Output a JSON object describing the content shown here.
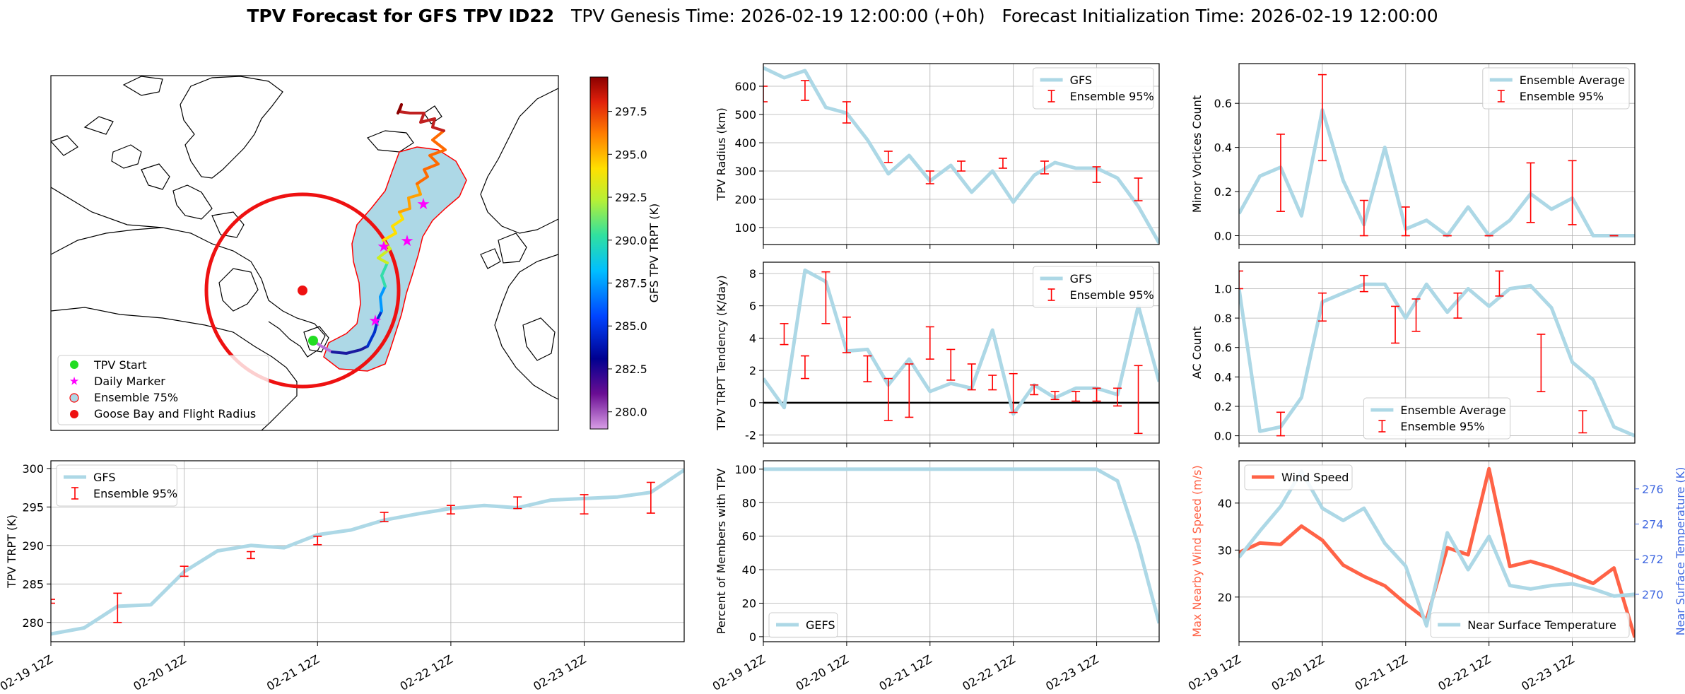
{
  "title": {
    "bold": "TPV Forecast for GFS TPV ID22",
    "genesis": "TPV Genesis Time: 2026-02-19 12:00:00 (+0h)",
    "init": "Forecast Initialization Time: 2026-02-19 12:00:00"
  },
  "colors": {
    "gfs": "#add8e6",
    "ensemble": "#ff0000",
    "wind": "#ff6347",
    "temp": "#4169e1",
    "goose_circle": "#ee1111",
    "contour_fill": "#add8e6"
  },
  "date_ticks": [
    "02-19 12Z",
    "02-20 12Z",
    "02-21 12Z",
    "02-22 12Z",
    "02-23 12Z"
  ],
  "map_panel": {
    "colorbar_label": "GFS TPV TRPT (K)",
    "colorbar_ticks": [
      "280.0",
      "282.5",
      "285.0",
      "287.5",
      "290.0",
      "292.5",
      "295.0",
      "297.5"
    ],
    "legend": [
      "TPV Start",
      "Daily Marker",
      "Ensemble 75%",
      "Goose Bay and Flight Radius"
    ]
  },
  "chart_data": [
    {
      "id": "radius",
      "type": "line",
      "ylabel": "TPV Radius (km)",
      "xlim": [
        0,
        19
      ],
      "ylim": [
        40,
        680
      ],
      "yticks": [
        100,
        200,
        300,
        400,
        500,
        600
      ],
      "legend_loc": "upper right",
      "legend": [
        "GFS",
        "Ensemble 95%"
      ],
      "x": [
        0,
        1,
        2,
        3,
        4,
        5,
        6,
        7,
        8,
        9,
        10,
        11,
        12,
        13,
        14,
        15,
        16,
        17,
        18,
        19
      ],
      "series": [
        {
          "name": "GFS",
          "values": [
            665,
            630,
            655,
            525,
            505,
            410,
            290,
            355,
            265,
            320,
            225,
            300,
            190,
            285,
            330,
            310,
            310,
            275,
            175,
            45
          ]
        }
      ],
      "errorbars": [
        {
          "x": 0,
          "lo": 545,
          "hi": 600
        },
        {
          "x": 2,
          "lo": 550,
          "hi": 620
        },
        {
          "x": 4,
          "lo": 470,
          "hi": 545
        },
        {
          "x": 6,
          "lo": 330,
          "hi": 370
        },
        {
          "x": 8,
          "lo": 255,
          "hi": 300
        },
        {
          "x": 9.5,
          "lo": 300,
          "hi": 335
        },
        {
          "x": 11.5,
          "lo": 310,
          "hi": 345
        },
        {
          "x": 13.5,
          "lo": 290,
          "hi": 335
        },
        {
          "x": 16,
          "lo": 260,
          "hi": 315
        },
        {
          "x": 18,
          "lo": 195,
          "hi": 275
        }
      ]
    },
    {
      "id": "minor",
      "type": "line",
      "ylabel": "Minor Vortices Count",
      "xlim": [
        0,
        19
      ],
      "ylim": [
        -0.04,
        0.78
      ],
      "yticks": [
        0.0,
        0.2,
        0.4,
        0.6
      ],
      "legend_loc": "upper right",
      "legend": [
        "Ensemble Average",
        "Ensemble 95%"
      ],
      "x": [
        0,
        1,
        2,
        3,
        4,
        5,
        6,
        7,
        8,
        9,
        10,
        11,
        12,
        13,
        14,
        15,
        16,
        17,
        18,
        19
      ],
      "series": [
        {
          "name": "Ensemble Average",
          "values": [
            0.1,
            0.27,
            0.31,
            0.09,
            0.57,
            0.25,
            0.05,
            0.4,
            0.03,
            0.07,
            0.0,
            0.13,
            0.0,
            0.07,
            0.19,
            0.12,
            0.17,
            0.0,
            0.0,
            0.0
          ]
        }
      ],
      "errorbars": [
        {
          "x": 2,
          "lo": 0.11,
          "hi": 0.46
        },
        {
          "x": 4,
          "lo": 0.34,
          "hi": 0.73
        },
        {
          "x": 6,
          "lo": 0.0,
          "hi": 0.16
        },
        {
          "x": 8,
          "lo": 0.0,
          "hi": 0.13
        },
        {
          "x": 10,
          "lo": 0.0,
          "hi": 0.0
        },
        {
          "x": 12,
          "lo": 0.0,
          "hi": 0.0
        },
        {
          "x": 14,
          "lo": 0.06,
          "hi": 0.33
        },
        {
          "x": 16,
          "lo": 0.05,
          "hi": 0.34
        },
        {
          "x": 18,
          "lo": 0.0,
          "hi": 0.0
        }
      ]
    },
    {
      "id": "tendency",
      "type": "line",
      "ylabel": "TPV TRPT Tendency (K/day)",
      "xlim": [
        0,
        19
      ],
      "ylim": [
        -2.5,
        8.7
      ],
      "yticks": [
        -2,
        0,
        2,
        4,
        6,
        8
      ],
      "zero_line": true,
      "legend_loc": "upper right",
      "legend": [
        "GFS",
        "Ensemble 95%"
      ],
      "x": [
        0,
        1,
        2,
        3,
        4,
        5,
        6,
        7,
        8,
        9,
        10,
        11,
        12,
        13,
        14,
        15,
        16,
        17,
        18,
        19
      ],
      "series": [
        {
          "name": "GFS",
          "values": [
            1.5,
            -0.3,
            8.2,
            7.5,
            3.2,
            3.3,
            1.1,
            2.7,
            0.7,
            1.2,
            0.9,
            4.5,
            -0.7,
            1.1,
            0.3,
            0.9,
            0.9,
            0.5,
            6.0,
            1.3
          ]
        }
      ],
      "errorbars": [
        {
          "x": 1,
          "lo": 3.6,
          "hi": 4.9
        },
        {
          "x": 2,
          "lo": 1.5,
          "hi": 2.9
        },
        {
          "x": 3,
          "lo": 4.9,
          "hi": 8.1
        },
        {
          "x": 4,
          "lo": 3.1,
          "hi": 5.3
        },
        {
          "x": 5,
          "lo": 1.3,
          "hi": 2.9
        },
        {
          "x": 6,
          "lo": -1.1,
          "hi": 1.5
        },
        {
          "x": 7,
          "lo": -0.9,
          "hi": 2.4
        },
        {
          "x": 8,
          "lo": 2.7,
          "hi": 4.7
        },
        {
          "x": 9,
          "lo": 1.4,
          "hi": 3.3
        },
        {
          "x": 10,
          "lo": 0.8,
          "hi": 2.4
        },
        {
          "x": 11,
          "lo": 0.8,
          "hi": 1.7
        },
        {
          "x": 12,
          "lo": -0.6,
          "hi": 1.8
        },
        {
          "x": 13,
          "lo": 0.5,
          "hi": 1.1
        },
        {
          "x": 14,
          "lo": 0.2,
          "hi": 0.7
        },
        {
          "x": 15,
          "lo": 0.1,
          "hi": 0.7
        },
        {
          "x": 16,
          "lo": 0.1,
          "hi": 0.9
        },
        {
          "x": 17,
          "lo": -0.2,
          "hi": 0.9
        },
        {
          "x": 18,
          "lo": -1.9,
          "hi": 2.3
        }
      ]
    },
    {
      "id": "ac",
      "type": "line",
      "ylabel": "AC Count",
      "xlim": [
        0,
        19
      ],
      "ylim": [
        -0.05,
        1.18
      ],
      "yticks": [
        0.0,
        0.2,
        0.4,
        0.6,
        0.8,
        1.0
      ],
      "legend_loc": "lower center",
      "legend": [
        "Ensemble Average",
        "Ensemble 95%"
      ],
      "x": [
        0,
        1,
        2,
        3,
        4,
        5,
        6,
        7,
        8,
        9,
        10,
        11,
        12,
        13,
        14,
        15,
        16,
        17,
        18,
        19
      ],
      "series": [
        {
          "name": "Ensemble Average",
          "values": [
            1.0,
            0.03,
            0.06,
            0.26,
            0.91,
            0.97,
            1.03,
            1.03,
            0.8,
            1.03,
            0.84,
            1.0,
            0.88,
            1.0,
            1.02,
            0.87,
            0.5,
            0.38,
            0.06,
            0.0
          ]
        }
      ],
      "errorbars": [
        {
          "x": 0,
          "lo": 1.0,
          "hi": 1.12
        },
        {
          "x": 2,
          "lo": 0.0,
          "hi": 0.16
        },
        {
          "x": 4,
          "lo": 0.78,
          "hi": 0.97
        },
        {
          "x": 6,
          "lo": 0.98,
          "hi": 1.09
        },
        {
          "x": 7.5,
          "lo": 0.63,
          "hi": 0.88
        },
        {
          "x": 8.5,
          "lo": 0.71,
          "hi": 0.93
        },
        {
          "x": 10.5,
          "lo": 0.8,
          "hi": 0.97
        },
        {
          "x": 12.5,
          "lo": 0.95,
          "hi": 1.12
        },
        {
          "x": 14.5,
          "lo": 0.3,
          "hi": 0.69
        },
        {
          "x": 16.5,
          "lo": 0.02,
          "hi": 0.17
        }
      ]
    },
    {
      "id": "trpt",
      "type": "line",
      "ylabel": "TPV TRPT (K)",
      "xlim": [
        0,
        19
      ],
      "ylim": [
        277.5,
        301
      ],
      "yticks": [
        280,
        285,
        290,
        295,
        300
      ],
      "legend_loc": "upper left",
      "legend": [
        "GFS",
        "Ensemble 95%"
      ],
      "x": [
        0,
        1,
        2,
        3,
        4,
        5,
        6,
        7,
        8,
        9,
        10,
        11,
        12,
        13,
        14,
        15,
        16,
        17,
        18,
        19
      ],
      "series": [
        {
          "name": "GFS",
          "values": [
            278.5,
            279.3,
            282.1,
            282.3,
            286.6,
            289.3,
            290.0,
            289.7,
            291.4,
            292.0,
            293.3,
            294.1,
            294.8,
            295.2,
            294.9,
            295.9,
            296.1,
            296.3,
            296.9,
            299.8
          ]
        }
      ],
      "errorbars": [
        {
          "x": 0,
          "lo": 282.5,
          "hi": 283.0
        },
        {
          "x": 2,
          "lo": 280.0,
          "hi": 283.8
        },
        {
          "x": 4,
          "lo": 286.0,
          "hi": 287.3
        },
        {
          "x": 6,
          "lo": 288.3,
          "hi": 289.2
        },
        {
          "x": 8,
          "lo": 290.1,
          "hi": 291.2
        },
        {
          "x": 10,
          "lo": 293.1,
          "hi": 294.3
        },
        {
          "x": 12,
          "lo": 294.1,
          "hi": 295.2
        },
        {
          "x": 14,
          "lo": 294.8,
          "hi": 296.3
        },
        {
          "x": 16,
          "lo": 294.1,
          "hi": 296.6
        },
        {
          "x": 18,
          "lo": 294.2,
          "hi": 298.2
        }
      ]
    },
    {
      "id": "percent",
      "type": "line",
      "ylabel": "Percent of Members with TPV",
      "xlim": [
        0,
        19
      ],
      "ylim": [
        -3,
        105
      ],
      "yticks": [
        0,
        20,
        40,
        60,
        80,
        100
      ],
      "legend_loc": "lower left",
      "legend": [
        "GEFS"
      ],
      "x": [
        0,
        1,
        2,
        3,
        4,
        5,
        6,
        7,
        8,
        9,
        10,
        11,
        12,
        13,
        14,
        15,
        16,
        17,
        18,
        19
      ],
      "series": [
        {
          "name": "GEFS",
          "values": [
            100,
            100,
            100,
            100,
            100,
            100,
            100,
            100,
            100,
            100,
            100,
            100,
            100,
            100,
            100,
            100,
            100,
            93,
            55,
            8
          ]
        }
      ],
      "errorbars": []
    },
    {
      "id": "wind",
      "type": "line",
      "ylabel": "Max Nearby Wind Speed (m/s)",
      "ylabel_right": "Near Surface Temperature (K)",
      "xlim": [
        0,
        19
      ],
      "ylim": [
        10.5,
        49
      ],
      "yticks": [
        20,
        30,
        40
      ],
      "ylim_right": [
        267.3,
        277.6
      ],
      "yticks_right": [
        270,
        272,
        274,
        276
      ],
      "legend": [
        "Wind Speed",
        "Near Surface Temperature"
      ],
      "x": [
        0,
        1,
        2,
        3,
        4,
        5,
        6,
        7,
        8,
        9,
        10,
        11,
        12,
        13,
        14,
        15,
        16,
        17,
        18,
        19
      ],
      "series": [
        {
          "name": "Wind Speed",
          "axis": "left",
          "values": [
            29.5,
            31.5,
            31.2,
            35.1,
            32.1,
            26.8,
            24.4,
            22.4,
            18.6,
            15.2,
            30.5,
            29.0,
            47.3,
            26.5,
            27.6,
            26.3,
            24.7,
            22.9,
            26.2,
            11.4
          ]
        },
        {
          "name": "Near Surface Temperature",
          "axis": "right",
          "values": [
            272.1,
            273.6,
            275.0,
            277.0,
            274.9,
            274.2,
            274.9,
            272.9,
            271.6,
            268.2,
            273.5,
            271.4,
            273.3,
            270.5,
            270.3,
            270.5,
            270.6,
            270.3,
            269.9,
            270.0
          ]
        }
      ],
      "errorbars": []
    }
  ]
}
